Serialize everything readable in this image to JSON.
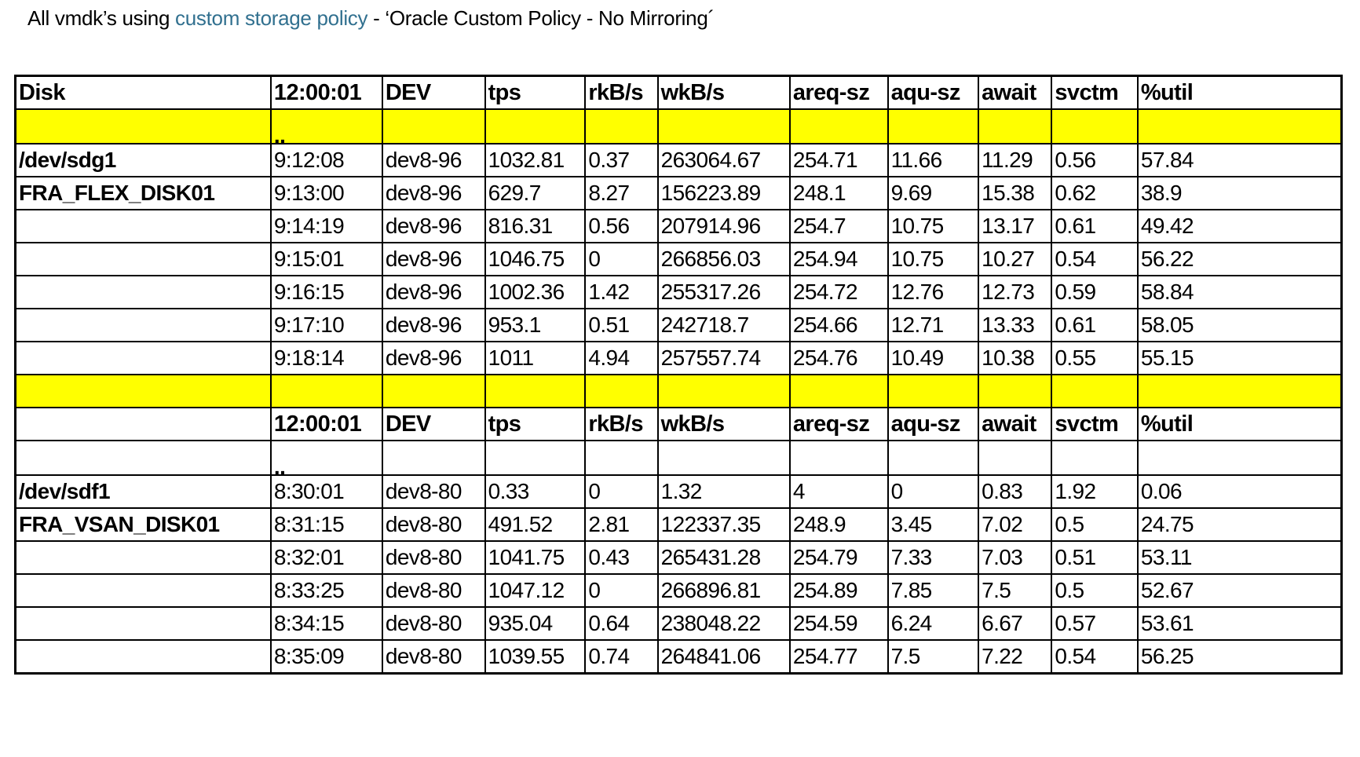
{
  "title": {
    "prefix": "All vmdk’s using ",
    "link_text": "custom storage policy",
    "suffix": " - ‘Oracle Custom Policy - No Mirroring´"
  },
  "colors": {
    "accent": "#31708f",
    "highlight": "#ffff00",
    "border": "#000000"
  },
  "table": {
    "columns": [
      "Disk",
      "12:00:01",
      "DEV",
      "tps",
      "rkB/s",
      "wkB/s",
      "areq-sz",
      "aqu-sz",
      "await",
      "svctm",
      "%util"
    ],
    "rows": [
      {
        "type": "header",
        "highlight": false,
        "cells": [
          "Disk",
          "12:00:01",
          "DEV",
          "tps",
          "rkB/s",
          "wkB/s",
          "areq-sz",
          "aqu-sz",
          "await",
          "svctm",
          "%util"
        ]
      },
      {
        "type": "dots",
        "highlight": true,
        "cells": [
          "",
          "..",
          "",
          "",
          "",
          "",
          "",
          "",
          "",
          "",
          ""
        ]
      },
      {
        "type": "data",
        "highlight": false,
        "cells": [
          "/dev/sdg1",
          "9:12:08",
          "dev8-96",
          "1032.81",
          "0.37",
          "263064.67",
          "254.71",
          "11.66",
          "11.29",
          "0.56",
          "57.84"
        ]
      },
      {
        "type": "data",
        "highlight": false,
        "cells": [
          "FRA_FLEX_DISK01",
          "9:13:00",
          "dev8-96",
          "629.7",
          "8.27",
          "156223.89",
          "248.1",
          "9.69",
          "15.38",
          "0.62",
          "38.9"
        ]
      },
      {
        "type": "data",
        "highlight": false,
        "cells": [
          "",
          "9:14:19",
          "dev8-96",
          "816.31",
          "0.56",
          "207914.96",
          "254.7",
          "10.75",
          "13.17",
          "0.61",
          "49.42"
        ]
      },
      {
        "type": "data",
        "highlight": false,
        "cells": [
          "",
          "9:15:01",
          "dev8-96",
          "1046.75",
          "0",
          "266856.03",
          "254.94",
          "10.75",
          "10.27",
          "0.54",
          "56.22"
        ]
      },
      {
        "type": "data",
        "highlight": false,
        "cells": [
          "",
          "9:16:15",
          "dev8-96",
          "1002.36",
          "1.42",
          "255317.26",
          "254.72",
          "12.76",
          "12.73",
          "0.59",
          "58.84"
        ]
      },
      {
        "type": "data",
        "highlight": false,
        "cells": [
          "",
          "9:17:10",
          "dev8-96",
          "953.1",
          "0.51",
          "242718.7",
          "254.66",
          "12.71",
          "13.33",
          "0.61",
          "58.05"
        ]
      },
      {
        "type": "data",
        "highlight": false,
        "cells": [
          "",
          "9:18:14",
          "dev8-96",
          "1011",
          "4.94",
          "257557.74",
          "254.76",
          "10.49",
          "10.38",
          "0.55",
          "55.15"
        ]
      },
      {
        "type": "separator",
        "highlight": true,
        "cells": [
          "",
          "",
          "",
          "",
          "",
          "",
          "",
          "",
          "",
          "",
          ""
        ]
      },
      {
        "type": "header",
        "highlight": false,
        "cells": [
          "",
          "12:00:01",
          "DEV",
          "tps",
          "rkB/s",
          "wkB/s",
          "areq-sz",
          "aqu-sz",
          "await",
          "svctm",
          "%util"
        ]
      },
      {
        "type": "dots",
        "highlight": false,
        "cells": [
          "",
          "..",
          "",
          "",
          "",
          "",
          "",
          "",
          "",
          "",
          ""
        ]
      },
      {
        "type": "data",
        "highlight": false,
        "cells": [
          "/dev/sdf1",
          "8:30:01",
          "dev8-80",
          "0.33",
          "0",
          "1.32",
          "4",
          "0",
          "0.83",
          "1.92",
          "0.06"
        ]
      },
      {
        "type": "data",
        "highlight": false,
        "cells": [
          "FRA_VSAN_DISK01",
          "8:31:15",
          "dev8-80",
          "491.52",
          "2.81",
          "122337.35",
          "248.9",
          "3.45",
          "7.02",
          "0.5",
          "24.75"
        ]
      },
      {
        "type": "data",
        "highlight": false,
        "cells": [
          "",
          "8:32:01",
          "dev8-80",
          "1041.75",
          "0.43",
          "265431.28",
          "254.79",
          "7.33",
          "7.03",
          "0.51",
          "53.11"
        ]
      },
      {
        "type": "data",
        "highlight": false,
        "cells": [
          "",
          "8:33:25",
          "dev8-80",
          "1047.12",
          "0",
          "266896.81",
          "254.89",
          "7.85",
          "7.5",
          "0.5",
          "52.67"
        ]
      },
      {
        "type": "data",
        "highlight": false,
        "cells": [
          "",
          "8:34:15",
          "dev8-80",
          "935.04",
          "0.64",
          "238048.22",
          "254.59",
          "6.24",
          "6.67",
          "0.57",
          "53.61"
        ]
      },
      {
        "type": "data",
        "highlight": false,
        "cells": [
          "",
          "8:35:09",
          "dev8-80",
          "1039.55",
          "0.74",
          "264841.06",
          "254.77",
          "7.5",
          "7.22",
          "0.54",
          "56.25"
        ]
      }
    ]
  }
}
